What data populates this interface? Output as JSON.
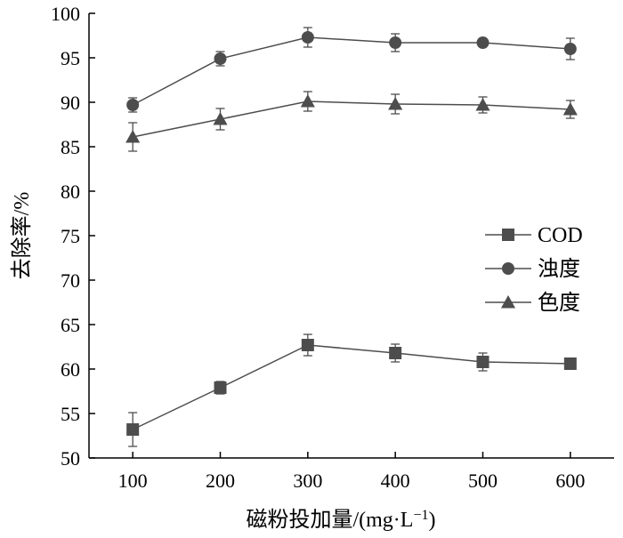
{
  "chart_data": {
    "type": "line",
    "x": [
      100,
      200,
      300,
      400,
      500,
      600
    ],
    "xlabel": "磁粉投加量/(mg·L",
    "xlabel_sup": "−1",
    "xlabel_end": ")",
    "ylabel": "去除率/%",
    "xlim": [
      50,
      650
    ],
    "ylim": [
      50,
      100
    ],
    "xticks": [
      "100",
      "200",
      "300",
      "400",
      "500",
      "600"
    ],
    "yticks": [
      "50",
      "55",
      "60",
      "65",
      "70",
      "75",
      "80",
      "85",
      "90",
      "95",
      "100"
    ],
    "grid": false,
    "legend_position": "center-right",
    "line_color": "#4d4d4d",
    "series": [
      {
        "name": "COD",
        "marker": "square",
        "values": [
          53.2,
          57.9,
          62.7,
          61.8,
          60.8,
          60.6
        ],
        "errors": [
          1.9,
          0.7,
          1.2,
          1.0,
          1.0,
          0.5
        ]
      },
      {
        "name": "浊度",
        "marker": "circle",
        "values": [
          89.7,
          94.9,
          97.3,
          96.7,
          96.7,
          96.0
        ],
        "errors": [
          0.8,
          0.8,
          1.1,
          1.0,
          0.4,
          1.2
        ]
      },
      {
        "name": "色度",
        "marker": "triangle",
        "values": [
          86.1,
          88.1,
          90.1,
          89.8,
          89.7,
          89.2
        ],
        "errors": [
          1.6,
          1.2,
          1.1,
          1.1,
          0.9,
          1.0
        ]
      }
    ]
  }
}
